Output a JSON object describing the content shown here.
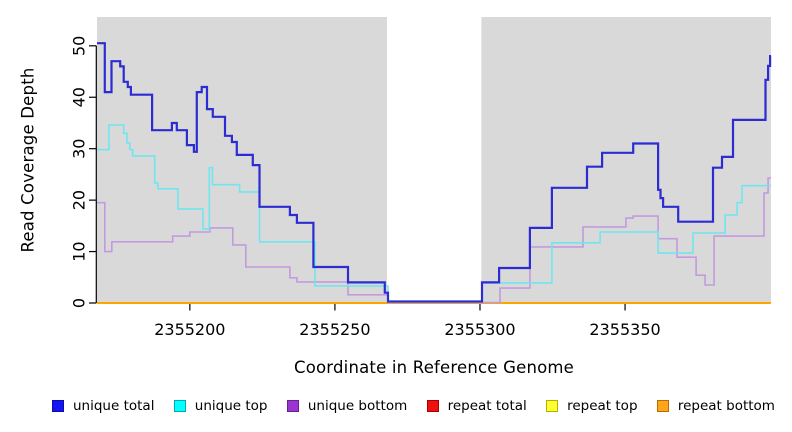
{
  "chart_data": {
    "type": "line",
    "subtype": "step-coverage",
    "title": "",
    "xlabel": "Coordinate in Reference Genome",
    "ylabel": "Read Coverage Depth",
    "xlim": [
      2355168,
      2355400.3
    ],
    "ylim": [
      0,
      55.6
    ],
    "x_ticks": [
      2355200,
      2355250,
      2355300,
      2355350
    ],
    "y_ticks": [
      0,
      10,
      20,
      30,
      40,
      50
    ],
    "grid": "off",
    "legend_position": "bottom",
    "bg_bands": [
      {
        "from": 2355168,
        "to": 2355268,
        "color": "#d9d9d9",
        "note": "covered region left"
      },
      {
        "from": 2355268,
        "to": 2355300.5,
        "color": "#ffffff",
        "note": "gap region"
      },
      {
        "from": 2355300.5,
        "to": 2355400.3,
        "color": "#d9d9d9",
        "note": "covered region right"
      }
    ],
    "series": [
      {
        "name": "repeat total",
        "color": "#ff0000",
        "width": 1.6,
        "steps": [
          [
            2355168,
            0
          ]
        ]
      },
      {
        "name": "repeat top",
        "color": "#ffff00",
        "width": 1.6,
        "steps": [
          [
            2355168,
            0
          ]
        ]
      },
      {
        "name": "repeat bottom",
        "color": "#ffa500",
        "width": 2.0,
        "steps": [
          [
            2355168,
            0
          ]
        ]
      },
      {
        "name": "unique bottom",
        "color": "#c49ade",
        "width": 1.6,
        "steps": [
          [
            2355168,
            19.5
          ],
          [
            2355170.7,
            10
          ],
          [
            2355173.1,
            11.9
          ],
          [
            2355194.1,
            13
          ],
          [
            2355200,
            13.8
          ],
          [
            2355206.9,
            14.6
          ],
          [
            2355214.8,
            11.3
          ],
          [
            2355219.3,
            7
          ],
          [
            2355234.5,
            4.9
          ],
          [
            2355236.9,
            4.1
          ],
          [
            2355254.5,
            1.6
          ],
          [
            2355268.3,
            0.1
          ],
          [
            2355306.9,
            2.9
          ],
          [
            2355317.2,
            10.9
          ],
          [
            2355335.5,
            14.8
          ],
          [
            2355350.3,
            16.5
          ],
          [
            2355352.8,
            16.9
          ],
          [
            2355361.4,
            12.5
          ],
          [
            2355367.9,
            8.9
          ],
          [
            2355374.5,
            5.4
          ],
          [
            2355377.6,
            3.5
          ],
          [
            2355380.7,
            13
          ],
          [
            2355397.9,
            21.4
          ],
          [
            2355399.3,
            24.3
          ]
        ]
      },
      {
        "name": "unique top",
        "color": "#6fe6ee",
        "width": 1.6,
        "steps": [
          [
            2355168,
            29.8
          ],
          [
            2355172.1,
            34.6
          ],
          [
            2355177.2,
            33
          ],
          [
            2355178.3,
            31.1
          ],
          [
            2355179.3,
            29.8
          ],
          [
            2355180.3,
            28.6
          ],
          [
            2355187.9,
            23.3
          ],
          [
            2355189,
            22.2
          ],
          [
            2355195.9,
            18.3
          ],
          [
            2355204.5,
            14.4
          ],
          [
            2355206.7,
            26.3
          ],
          [
            2355207.8,
            23
          ],
          [
            2355217.2,
            21.6
          ],
          [
            2355224,
            11.9
          ],
          [
            2355243.1,
            3.3
          ],
          [
            2355268.3,
            0.2
          ],
          [
            2355300.7,
            3.9
          ],
          [
            2355324.8,
            11.7
          ],
          [
            2355341.4,
            13.8
          ],
          [
            2355361.4,
            9.7
          ],
          [
            2355373.4,
            13.6
          ],
          [
            2355384.5,
            17.1
          ],
          [
            2355388.6,
            19.5
          ],
          [
            2355390.3,
            22.8
          ]
        ]
      },
      {
        "name": "unique total",
        "color": "#2c2cd2",
        "width": 2.2,
        "steps": [
          [
            2355168,
            50.5
          ],
          [
            2355170.7,
            41
          ],
          [
            2355173,
            47
          ],
          [
            2355176,
            46
          ],
          [
            2355177.2,
            43
          ],
          [
            2355178.6,
            42
          ],
          [
            2355179.7,
            40.5
          ],
          [
            2355187,
            33.6
          ],
          [
            2355193.8,
            35
          ],
          [
            2355195.5,
            33.6
          ],
          [
            2355199,
            30.7
          ],
          [
            2355201.4,
            29.4
          ],
          [
            2355202.4,
            41
          ],
          [
            2355204.1,
            42
          ],
          [
            2355205.9,
            37.7
          ],
          [
            2355207.9,
            36.2
          ],
          [
            2355212.1,
            32.5
          ],
          [
            2355214.5,
            31.3
          ],
          [
            2355216.2,
            28.8
          ],
          [
            2355221.7,
            26.8
          ],
          [
            2355224,
            18.7
          ],
          [
            2355234.5,
            17.1
          ],
          [
            2355236.9,
            15.6
          ],
          [
            2355242.6,
            7
          ],
          [
            2355254.5,
            4
          ],
          [
            2355267.2,
            2
          ],
          [
            2355268.3,
            0.3
          ],
          [
            2355300.7,
            4
          ],
          [
            2355306.6,
            6.8
          ],
          [
            2355317.2,
            14.6
          ],
          [
            2355324.8,
            22.4
          ],
          [
            2355336.9,
            26.5
          ],
          [
            2355342.1,
            29.2
          ],
          [
            2355352.8,
            31
          ],
          [
            2355361.4,
            22
          ],
          [
            2355362.2,
            20.4
          ],
          [
            2355363.1,
            18.7
          ],
          [
            2355368.3,
            15.8
          ],
          [
            2355380.3,
            26.3
          ],
          [
            2355383.4,
            28.4
          ],
          [
            2355387.2,
            35.6
          ],
          [
            2355398.4,
            43.4
          ],
          [
            2355399.3,
            46.1
          ],
          [
            2355400,
            48
          ]
        ]
      }
    ]
  },
  "legend": {
    "items": [
      {
        "label": "unique total",
        "fill": "#1515f0",
        "border": "#0b0bb4"
      },
      {
        "label": "unique top",
        "fill": "#00ffff",
        "border": "#00aab4"
      },
      {
        "label": "unique bottom",
        "fill": "#9b35d0",
        "border": "#6a1f99"
      },
      {
        "label": "repeat total",
        "fill": "#ee1111",
        "border": "#aa0000"
      },
      {
        "label": "repeat top",
        "fill": "#fdfd32",
        "border": "#b0b000"
      },
      {
        "label": "repeat bottom",
        "fill": "#ffa519",
        "border": "#b46d00"
      }
    ]
  }
}
